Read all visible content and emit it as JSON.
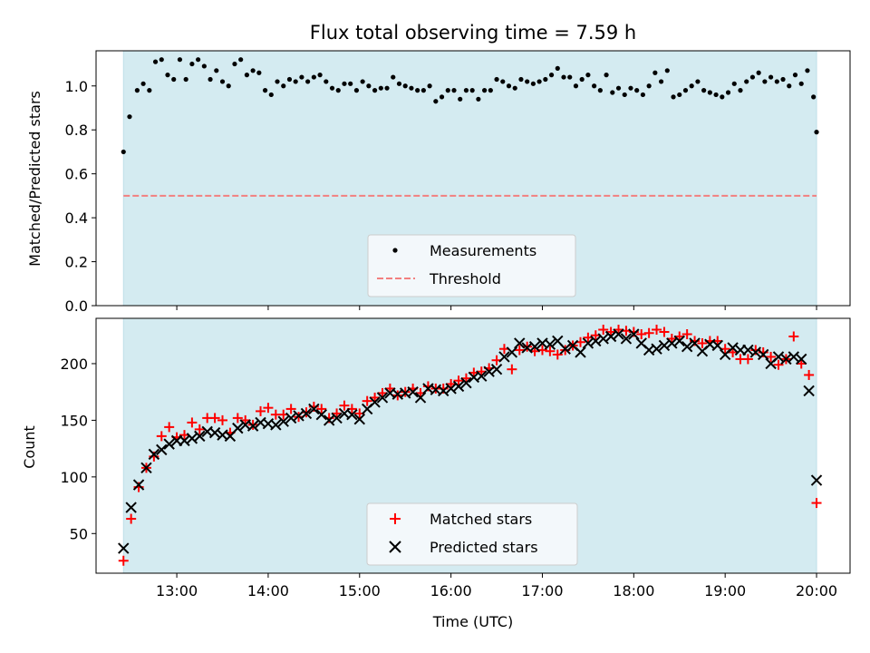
{
  "colors": {
    "shade": "#d4ebf1",
    "threshold": "#f28080",
    "matched": "#ff0000",
    "predicted": "#000000",
    "measurement": "#000000"
  },
  "chart_data": [
    {
      "type": "scatter",
      "title": "Flux total observing time = 7.59 h",
      "xlabel": "",
      "ylabel": "Matched/Predicted stars",
      "xlim": [
        "12:07",
        "20:22"
      ],
      "ylim": [
        0.0,
        1.16
      ],
      "x_ticks": [
        "13:00",
        "14:00",
        "15:00",
        "16:00",
        "17:00",
        "18:00",
        "19:00",
        "20:00"
      ],
      "y_ticks": [
        "0.0",
        "0.2",
        "0.4",
        "0.6",
        "0.8",
        "1.0"
      ],
      "y_tick_values": [
        0.0,
        0.2,
        0.4,
        0.6,
        0.8,
        1.0
      ],
      "shaded_span": [
        "12:25",
        "20:00"
      ],
      "threshold": 0.5,
      "legend": {
        "position": "lower center",
        "entries": [
          "Measurements",
          "Threshold"
        ]
      },
      "series": [
        {
          "name": "Measurements",
          "x": [
            "12:25",
            "12:29",
            "12:34",
            "12:38",
            "12:42",
            "12:46",
            "12:50",
            "12:54",
            "12:58",
            "13:02",
            "13:06",
            "13:10",
            "13:14",
            "13:18",
            "13:22",
            "13:26",
            "13:30",
            "13:34",
            "13:38",
            "13:42",
            "13:46",
            "13:50",
            "13:54",
            "13:58",
            "14:02",
            "14:06",
            "14:10",
            "14:14",
            "14:18",
            "14:22",
            "14:26",
            "14:30",
            "14:34",
            "14:38",
            "14:42",
            "14:46",
            "14:50",
            "14:54",
            "14:58",
            "15:02",
            "15:06",
            "15:10",
            "15:14",
            "15:18",
            "15:22",
            "15:26",
            "15:30",
            "15:34",
            "15:38",
            "15:42",
            "15:46",
            "15:50",
            "15:54",
            "15:58",
            "16:02",
            "16:06",
            "16:10",
            "16:14",
            "16:18",
            "16:22",
            "16:26",
            "16:30",
            "16:34",
            "16:38",
            "16:42",
            "16:46",
            "16:50",
            "16:54",
            "16:58",
            "17:02",
            "17:06",
            "17:10",
            "17:14",
            "17:18",
            "17:22",
            "17:26",
            "17:30",
            "17:34",
            "17:38",
            "17:42",
            "17:46",
            "17:50",
            "17:54",
            "17:58",
            "18:02",
            "18:06",
            "18:10",
            "18:14",
            "18:18",
            "18:22",
            "18:26",
            "18:30",
            "18:34",
            "18:38",
            "18:42",
            "18:46",
            "18:50",
            "18:54",
            "18:58",
            "19:02",
            "19:06",
            "19:10",
            "19:14",
            "19:18",
            "19:22",
            "19:26",
            "19:30",
            "19:34",
            "19:38",
            "19:42",
            "19:46",
            "19:50",
            "19:54",
            "19:58",
            "20:00"
          ],
          "y": [
            0.7,
            0.86,
            0.98,
            1.01,
            0.98,
            1.11,
            1.12,
            1.05,
            1.03,
            1.12,
            1.03,
            1.1,
            1.12,
            1.09,
            1.03,
            1.07,
            1.02,
            1.0,
            1.1,
            1.12,
            1.05,
            1.07,
            1.06,
            0.98,
            0.96,
            1.02,
            1.0,
            1.03,
            1.02,
            1.04,
            1.02,
            1.04,
            1.05,
            1.02,
            0.99,
            0.98,
            1.01,
            1.01,
            0.98,
            1.02,
            1.0,
            0.98,
            0.99,
            0.99,
            1.04,
            1.01,
            1.0,
            0.99,
            0.98,
            0.98,
            1.0,
            0.93,
            0.95,
            0.98,
            0.98,
            0.94,
            0.98,
            0.98,
            0.94,
            0.98,
            0.98,
            1.03,
            1.02,
            1.0,
            0.99,
            1.03,
            1.02,
            1.01,
            1.02,
            1.03,
            1.05,
            1.08,
            1.04,
            1.04,
            1.0,
            1.03,
            1.05,
            1.0,
            0.98,
            1.05,
            0.97,
            0.99,
            0.96,
            0.99,
            0.98,
            0.96,
            1.0,
            1.06,
            1.02,
            1.07,
            0.95,
            0.96,
            0.98,
            1.0,
            1.02,
            0.98,
            0.97,
            0.96,
            0.95,
            0.97,
            1.01,
            0.98,
            1.02,
            1.04,
            1.06,
            1.02,
            1.04,
            1.02,
            1.03,
            1.0,
            1.05,
            1.01,
            1.07,
            0.95,
            0.79
          ]
        }
      ]
    },
    {
      "type": "scatter",
      "title": "",
      "xlabel": "Time (UTC)",
      "ylabel": "Count",
      "xlim": [
        "12:07",
        "20:22"
      ],
      "ylim": [
        15,
        240
      ],
      "x_ticks": [
        "13:00",
        "14:00",
        "15:00",
        "16:00",
        "17:00",
        "18:00",
        "19:00",
        "20:00"
      ],
      "y_ticks": [
        "50",
        "100",
        "150",
        "200"
      ],
      "y_tick_values": [
        50,
        100,
        150,
        200
      ],
      "shaded_span": [
        "12:25",
        "20:00"
      ],
      "legend": {
        "position": "lower center",
        "entries": [
          "Matched stars",
          "Predicted stars"
        ]
      },
      "series": [
        {
          "name": "Matched stars",
          "x": [
            "12:25",
            "12:30",
            "12:35",
            "12:40",
            "12:45",
            "12:50",
            "12:55",
            "13:00",
            "13:05",
            "13:10",
            "13:15",
            "13:20",
            "13:25",
            "13:30",
            "13:35",
            "13:40",
            "13:45",
            "13:50",
            "13:55",
            "14:00",
            "14:05",
            "14:10",
            "14:15",
            "14:20",
            "14:25",
            "14:30",
            "14:35",
            "14:40",
            "14:45",
            "14:50",
            "14:55",
            "15:00",
            "15:05",
            "15:10",
            "15:15",
            "15:20",
            "15:25",
            "15:30",
            "15:35",
            "15:40",
            "15:45",
            "15:50",
            "15:55",
            "16:00",
            "16:05",
            "16:10",
            "16:15",
            "16:20",
            "16:25",
            "16:30",
            "16:35",
            "16:40",
            "16:45",
            "16:50",
            "16:55",
            "17:00",
            "17:05",
            "17:10",
            "17:15",
            "17:20",
            "17:25",
            "17:30",
            "17:35",
            "17:40",
            "17:45",
            "17:50",
            "17:55",
            "18:00",
            "18:05",
            "18:10",
            "18:15",
            "18:20",
            "18:25",
            "18:30",
            "18:35",
            "18:40",
            "18:45",
            "18:50",
            "18:55",
            "19:00",
            "19:05",
            "19:10",
            "19:15",
            "19:20",
            "19:25",
            "19:30",
            "19:35",
            "19:40",
            "19:45",
            "19:50",
            "19:55",
            "20:00"
          ],
          "y": [
            26,
            63,
            91,
            108,
            118,
            136,
            144,
            135,
            137,
            148,
            142,
            152,
            152,
            150,
            139,
            152,
            150,
            146,
            158,
            161,
            155,
            155,
            160,
            153,
            157,
            162,
            160,
            152,
            156,
            163,
            160,
            156,
            167,
            170,
            174,
            178,
            172,
            175,
            178,
            174,
            180,
            178,
            178,
            182,
            185,
            187,
            192,
            193,
            196,
            203,
            213,
            195,
            212,
            215,
            211,
            212,
            211,
            208,
            212,
            216,
            219,
            223,
            225,
            230,
            228,
            230,
            229,
            228,
            226,
            227,
            230,
            228,
            222,
            224,
            226,
            220,
            218,
            220,
            220,
            213,
            210,
            204,
            204,
            212,
            210,
            206,
            199,
            204,
            224,
            200,
            190,
            77
          ]
        },
        {
          "name": "Predicted stars",
          "x": [
            "12:25",
            "12:30",
            "12:35",
            "12:40",
            "12:45",
            "12:50",
            "12:55",
            "13:00",
            "13:05",
            "13:10",
            "13:15",
            "13:20",
            "13:25",
            "13:30",
            "13:35",
            "13:40",
            "13:45",
            "13:50",
            "13:55",
            "14:00",
            "14:05",
            "14:10",
            "14:15",
            "14:20",
            "14:25",
            "14:30",
            "14:35",
            "14:40",
            "14:45",
            "14:50",
            "14:55",
            "15:00",
            "15:05",
            "15:10",
            "15:15",
            "15:20",
            "15:25",
            "15:30",
            "15:35",
            "15:40",
            "15:45",
            "15:50",
            "15:55",
            "16:00",
            "16:05",
            "16:10",
            "16:15",
            "16:20",
            "16:25",
            "16:30",
            "16:35",
            "16:40",
            "16:45",
            "16:50",
            "16:55",
            "17:00",
            "17:05",
            "17:10",
            "17:15",
            "17:20",
            "17:25",
            "17:30",
            "17:35",
            "17:40",
            "17:45",
            "17:50",
            "17:55",
            "18:00",
            "18:05",
            "18:10",
            "18:15",
            "18:20",
            "18:25",
            "18:30",
            "18:35",
            "18:40",
            "18:45",
            "18:50",
            "18:55",
            "19:00",
            "19:05",
            "19:10",
            "19:15",
            "19:20",
            "19:25",
            "19:30",
            "19:35",
            "19:40",
            "19:45",
            "19:50",
            "19:55",
            "20:00"
          ],
          "y": [
            37,
            73,
            93,
            108,
            120,
            124,
            129,
            132,
            132,
            134,
            136,
            140,
            139,
            137,
            136,
            143,
            146,
            145,
            148,
            147,
            146,
            149,
            152,
            154,
            156,
            160,
            155,
            150,
            152,
            156,
            155,
            151,
            160,
            166,
            170,
            174,
            173,
            174,
            175,
            170,
            178,
            177,
            176,
            178,
            180,
            183,
            188,
            189,
            193,
            195,
            206,
            210,
            218,
            214,
            215,
            218,
            217,
            220,
            213,
            216,
            210,
            218,
            220,
            222,
            224,
            226,
            222,
            226,
            218,
            212,
            213,
            216,
            218,
            220,
            215,
            218,
            211,
            217,
            216,
            208,
            214,
            212,
            212,
            210,
            208,
            200,
            206,
            204,
            206,
            204,
            176,
            97
          ]
        }
      ]
    }
  ]
}
